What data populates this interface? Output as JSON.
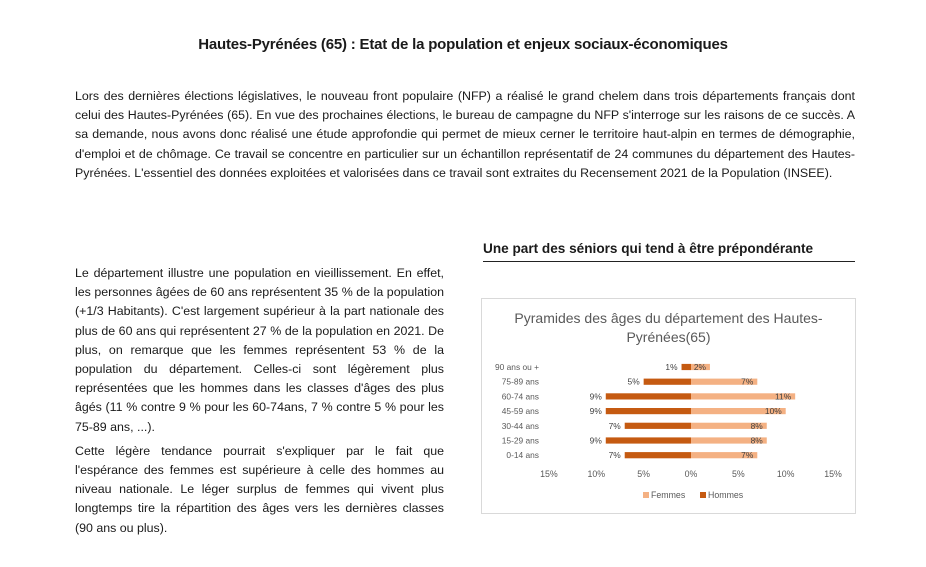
{
  "page": {
    "title": "Hautes-Pyrénées (65) : Etat de la population et enjeux sociaux-économiques",
    "intro": "Lors des dernières élections législatives, le nouveau front populaire (NFP) a réalisé le grand chelem dans trois départements français dont celui des Hautes-Pyrénées (65). En vue des prochaines élections, le bureau de campagne du NFP s'interroge sur les raisons de ce succès. A sa demande, nous avons donc réalisé une étude approfondie qui permet de mieux cerner le territoire haut-alpin en termes de démographie, d'emploi et de chômage. Ce travail se concentre en particulier sur un échantillon représentatif de 24 communes du département des Hautes-Pyrénées. L'essentiel des données exploitées et valorisées dans ce travail sont extraites du Recensement 2021 de la Population (INSEE).",
    "section_heading": "Une part des séniors qui tend à être prépondérante",
    "paragraphs": [
      "Le département illustre une population en vieillissement. En effet, les personnes âgées de 60 ans représentent 35 % de la population (+1/3 Habitants). C'est largement supérieur à la part nationale des plus de 60 ans qui représentent 27 % de la population en 2021. De plus, on remarque que les femmes représentent 53 % de la population du département. Celles-ci sont légèrement plus représentées que les hommes dans les classes d'âges des plus âgés (11 % contre 9 % pour les 60-74ans, 7 % contre 5 % pour les 75-89 ans, ...).",
      "Cette légère tendance pourrait s'expliquer par le fait que l'espérance des femmes est supérieure à celle des hommes au niveau nationale.  Le léger surplus de femmes qui vivent plus longtemps tire la répartition des âges vers les dernières classes (90 ans ou plus)."
    ]
  },
  "chart_data": {
    "type": "bar",
    "orientation": "horizontal",
    "title": "Pyramides des âges du département des Hautes-Pyrénées(65)",
    "categories": [
      "90 ans ou +",
      "75-89 ans",
      "60-74 ans",
      "45-59 ans",
      "30-44 ans",
      "15-29 ans",
      "0-14 ans"
    ],
    "series": [
      {
        "name": "Femmes",
        "values": [
          2,
          7,
          11,
          10,
          8,
          8,
          7
        ],
        "labels": [
          "2%",
          "7%",
          "11%",
          "10%",
          "8%",
          "8%",
          "7%"
        ],
        "color": "#F4B183"
      },
      {
        "name": "Hommes",
        "values": [
          1,
          5,
          9,
          9,
          7,
          9,
          7
        ],
        "labels": [
          "1%",
          "5%",
          "9%",
          "9%",
          "7%",
          "9%",
          "7%"
        ],
        "color": "#C55A11"
      }
    ],
    "x_ticks": [
      "15%",
      "10%",
      "5%",
      "0%",
      "5%",
      "10%",
      "15%"
    ],
    "xlim": [
      -15,
      15
    ],
    "legend": "bottom",
    "grid": false
  }
}
